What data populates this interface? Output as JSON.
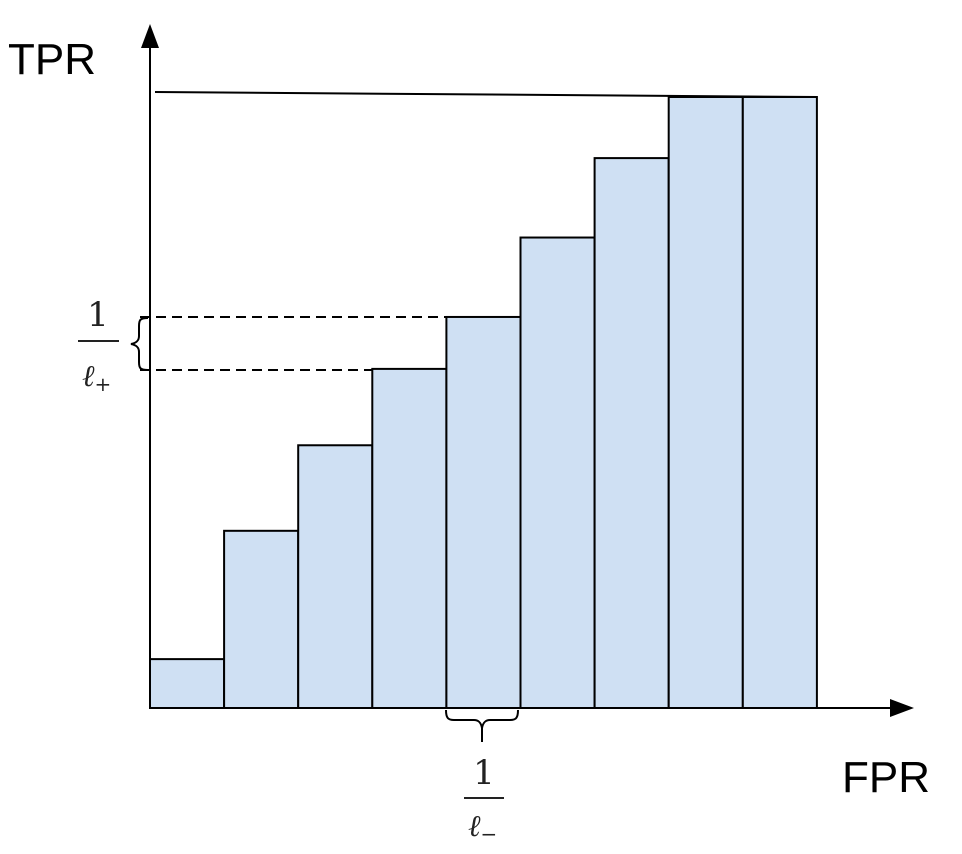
{
  "axes": {
    "y_label": "TPR",
    "x_label": "FPR"
  },
  "chart_data": {
    "type": "bar",
    "bar_heights": [
      0.08,
      0.29,
      0.43,
      0.555,
      0.64,
      0.77,
      0.9,
      1.0,
      1.0
    ],
    "top_reference": 1.0
  },
  "annotations": {
    "tpr_step_fraction": {
      "numerator": "1",
      "denominator_symbol": "ℓ",
      "denominator_subscript": "+"
    },
    "fpr_step_fraction": {
      "numerator": "1",
      "denominator_symbol": "ℓ",
      "denominator_subscript": "−"
    }
  },
  "colors": {
    "bar_fill": "#cfe0f3",
    "stroke": "#000000"
  }
}
